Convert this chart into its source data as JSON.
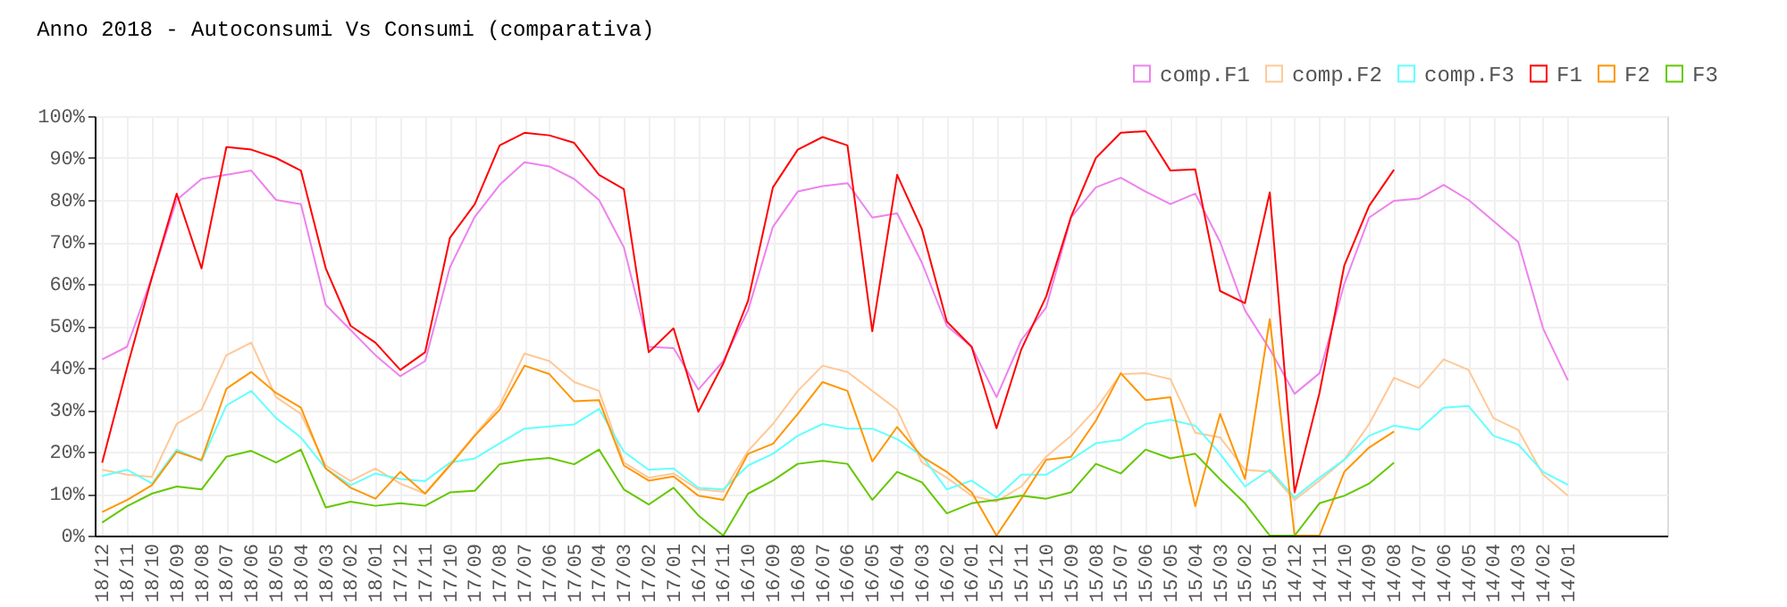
{
  "chart_data": {
    "type": "line",
    "title": "Anno 2018 - Autoconsumi Vs Consumi (comparativa)",
    "categories": [
      "18/12",
      "18/11",
      "18/10",
      "18/09",
      "18/08",
      "18/07",
      "18/06",
      "18/05",
      "18/04",
      "18/03",
      "18/02",
      "18/01",
      "17/12",
      "17/11",
      "17/10",
      "17/09",
      "17/08",
      "17/07",
      "17/06",
      "17/05",
      "17/04",
      "17/03",
      "17/02",
      "17/01",
      "16/12",
      "16/11",
      "16/10",
      "16/09",
      "16/08",
      "16/07",
      "16/06",
      "16/05",
      "16/04",
      "16/03",
      "16/02",
      "16/01",
      "15/12",
      "15/11",
      "15/10",
      "15/09",
      "15/08",
      "15/07",
      "15/06",
      "15/05",
      "15/04",
      "15/03",
      "15/02",
      "15/01",
      "14/12",
      "14/11",
      "14/10",
      "14/09",
      "14/08",
      "14/07",
      "14/06",
      "14/05",
      "14/04",
      "14/03",
      "14/02",
      "14/01"
    ],
    "series": [
      {
        "name": "comp.F1",
        "color": "#ee82ee",
        "values": [
          42,
          45,
          61.5,
          80,
          85,
          86,
          87,
          80,
          79,
          55,
          49,
          43,
          38,
          41.6,
          64,
          76,
          83.6,
          89,
          88,
          85,
          80,
          68.7,
          45,
          44.7,
          34.8,
          41.6,
          53.7,
          73.6,
          82,
          83.3,
          84,
          75.8,
          76.8,
          65,
          50,
          45,
          33,
          46.6,
          54.4,
          75.8,
          83,
          85.3,
          82,
          79,
          81.5,
          70,
          53.7,
          44.4,
          33.8,
          38.7,
          60,
          75.8,
          79.8,
          80.3,
          83.6,
          80,
          75,
          70,
          49.4,
          37
        ]
      },
      {
        "name": "comp.F2",
        "color": "#ffc896",
        "values": [
          15.7,
          14.5,
          14,
          26.6,
          30,
          43,
          46,
          33,
          29,
          16.7,
          13,
          16,
          12.4,
          10,
          17,
          24,
          31,
          43.4,
          41.6,
          36.6,
          34.5,
          17.4,
          13.8,
          14.8,
          11,
          10.5,
          20.2,
          26.6,
          34.5,
          40.5,
          39,
          34.5,
          30,
          17.4,
          13.8,
          9.5,
          8.1,
          11.7,
          18.8,
          23.8,
          30.2,
          38.5,
          38.7,
          37.3,
          24.5,
          23.4,
          15.7,
          15.2,
          8.5,
          13.1,
          18.1,
          26.6,
          37.6,
          35.2,
          42,
          39.5,
          28,
          25.2,
          14.5,
          9.5
        ]
      },
      {
        "name": "comp.F3",
        "color": "#64ffff",
        "values": [
          14.2,
          15.7,
          12.4,
          20.5,
          17.8,
          31,
          34.5,
          28,
          23.4,
          16,
          12,
          14.8,
          13.5,
          13,
          17.4,
          18.4,
          22,
          25.5,
          26,
          26.5,
          30.2,
          20,
          15.7,
          16,
          11.4,
          11,
          16.7,
          19.5,
          23.8,
          26.6,
          25.5,
          25.5,
          23,
          19,
          11,
          13.1,
          9.1,
          14.5,
          14.5,
          18.1,
          22,
          22.8,
          26.6,
          27.6,
          26.2,
          19.5,
          11.7,
          15.7,
          9.1,
          13.8,
          18.1,
          23.8,
          26.2,
          25.2,
          30.5,
          30.9,
          23.8,
          21.7,
          15.2,
          12.1
        ]
      },
      {
        "name": "F1",
        "color": "#ff0000",
        "values": [
          17.4,
          40,
          61.5,
          81.5,
          63.7,
          92.6,
          92,
          90,
          87,
          63.7,
          50,
          46,
          39.5,
          43.7,
          71,
          79,
          93,
          96,
          95.4,
          93.6,
          86,
          82.6,
          43.7,
          49.4,
          29.5,
          41,
          56,
          83,
          92,
          95,
          93,
          48.7,
          86,
          73,
          51,
          45,
          25.6,
          44.4,
          57,
          76,
          90,
          96,
          96.4,
          87,
          87.3,
          58.3,
          55.4,
          81.8,
          10.3,
          34,
          64.4,
          78.6,
          87.2,
          null,
          null,
          null,
          null,
          null,
          null,
          null
        ]
      },
      {
        "name": "F2",
        "color": "#ff9600",
        "values": [
          5.6,
          8.5,
          12,
          20,
          18,
          35,
          39,
          34,
          30.5,
          16,
          11.4,
          8.8,
          15.2,
          10,
          16.7,
          23.8,
          30,
          40.5,
          38.5,
          32,
          32.3,
          16.7,
          13.1,
          14.1,
          9.5,
          8.5,
          19.5,
          21.9,
          29,
          36.6,
          34.5,
          17.7,
          25.9,
          18.8,
          15.2,
          10.3,
          0,
          8.8,
          18.1,
          18.8,
          27.4,
          38.7,
          32.3,
          33,
          7,
          29,
          13.5,
          51.6,
          0,
          0,
          15.2,
          21,
          24.8,
          null,
          null,
          null,
          null,
          null,
          null,
          null
        ]
      },
      {
        "name": "F3",
        "color": "#64c800",
        "values": [
          3.1,
          7,
          10,
          11.7,
          11,
          18.8,
          20.2,
          17.4,
          20.5,
          6.7,
          8.1,
          7.1,
          7.7,
          7.1,
          10.3,
          10.7,
          17,
          18,
          18.5,
          17,
          20.5,
          11,
          7.4,
          11.4,
          4.8,
          0,
          10,
          13.1,
          17.1,
          17.8,
          17.1,
          8.5,
          15.2,
          12.7,
          5.3,
          7.7,
          8.5,
          9.5,
          8.8,
          10.3,
          17.1,
          14.8,
          20.5,
          18.4,
          19.5,
          13.4,
          7.7,
          0,
          0,
          7.7,
          9.5,
          12.4,
          17.4,
          null,
          null,
          null,
          null,
          null,
          null,
          null
        ]
      }
    ],
    "ylim": [
      0,
      100
    ],
    "yticks": [
      {
        "value": 0,
        "label": "0%"
      },
      {
        "value": 10,
        "label": "10%"
      },
      {
        "value": 20,
        "label": "20%"
      },
      {
        "value": 30,
        "label": "30%"
      },
      {
        "value": 40,
        "label": "40%"
      },
      {
        "value": 50,
        "label": "50%"
      },
      {
        "value": 60,
        "label": "60%"
      },
      {
        "value": 70,
        "label": "70%"
      },
      {
        "value": 80,
        "label": "80%"
      },
      {
        "value": 90,
        "label": "90%"
      },
      {
        "value": 100,
        "label": "100%"
      }
    ],
    "grid": true,
    "legend": "top right",
    "marker": "none",
    "line_style": "solid"
  }
}
